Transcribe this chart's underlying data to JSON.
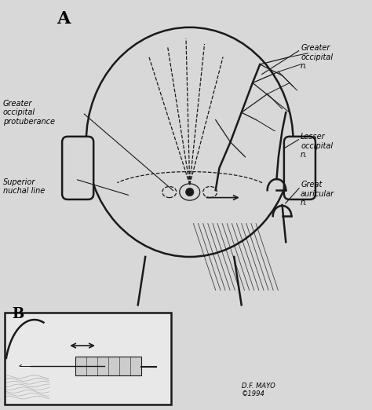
{
  "title": "",
  "background_color": "#f0f0f0",
  "line_color": "#1a1a1a",
  "text_color": "#000000",
  "label_A": "A",
  "label_B": "B",
  "labels": {
    "greater_occipital_n": "Greater\noccipital\nn.",
    "greater_occipital_p": "Greater\noccipital\nprotuberance",
    "superior_nuchal": "Superior\nnuchal line",
    "lesser_occipital": "Lesser\noccipital\nn.",
    "great_auricular": "Great\nauricular\nn.",
    "mayo": "D.F. MAYO\n©1994"
  },
  "fig_bg": "#d8d8d8"
}
